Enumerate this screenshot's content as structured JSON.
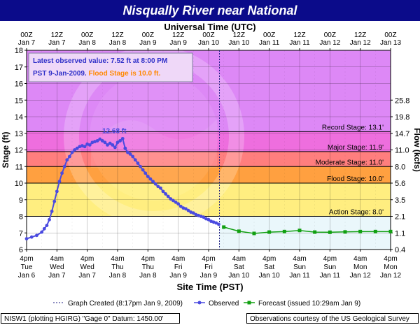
{
  "title": "Nisqually River near National",
  "top_axis_title": "Universal Time (UTC)",
  "bottom_axis_title": "Site Time (PST)",
  "left_axis_title": "Stage (ft)",
  "right_axis_title": "Flow (kcfs)",
  "info_box": {
    "line1": "Latest observed value: 7.52 ft at 8:00 PM",
    "line2a": "PST 9-Jan-2009. ",
    "line2b": "Flood Stage is 10.0 ft."
  },
  "peak_label": "12.68 ft",
  "watermark": "NOAA",
  "legend": {
    "created": "Graph Created (8:17pm Jan 9, 2009)",
    "observed": "Observed",
    "forecast": "Forecast (issued 10:29am Jan 9)"
  },
  "footer_left": "NISW1 (plotting HGIRG)  \"Gage 0\" Datum: 1450.00'",
  "footer_right": "Observations courtesy of the US Geological Survey",
  "colors": {
    "title_bg": "#0b0b8a",
    "record_zone": "#dd88f6",
    "major_zone": "#ee6ede",
    "moderate_zone": "#ff7e7e",
    "flood_zone": "#ffa040",
    "action_zone": "#ffee80",
    "normal_zone": "#ffffff",
    "observed": "#4a4ae0",
    "forecast": "#11a011",
    "info_text": "#2f2fc8",
    "flood_text": "#ff8800"
  },
  "chart_data": {
    "type": "line",
    "x_unit": "hours after 4pm Jan 6 (PST)",
    "ylim": [
      6,
      18
    ],
    "xlim": [
      0,
      120
    ],
    "y_ticks": [
      6,
      7,
      8,
      9,
      10,
      11,
      12,
      13,
      14,
      15,
      16,
      17,
      18
    ],
    "right_ticks": [
      {
        "stage": 6.0,
        "label": "0.4"
      },
      {
        "stage": 7.0,
        "label": "1.1"
      },
      {
        "stage": 8.0,
        "label": "2.1"
      },
      {
        "stage": 9.0,
        "label": "3.5"
      },
      {
        "stage": 10.0,
        "label": "5.6"
      },
      {
        "stage": 11.0,
        "label": "8.0"
      },
      {
        "stage": 12.0,
        "label": "11.0"
      },
      {
        "stage": 13.0,
        "label": "14.7"
      },
      {
        "stage": 14.0,
        "label": "19.8"
      },
      {
        "stage": 15.0,
        "label": "25.8"
      }
    ],
    "bottom_ticks": [
      {
        "h": 0,
        "l1": "4pm",
        "l2": "Tue",
        "l3": "Jan 6"
      },
      {
        "h": 12,
        "l1": "4am",
        "l2": "Wed",
        "l3": "Jan 7"
      },
      {
        "h": 24,
        "l1": "4pm",
        "l2": "Wed",
        "l3": "Jan 7"
      },
      {
        "h": 36,
        "l1": "4am",
        "l2": "Thu",
        "l3": "Jan 8"
      },
      {
        "h": 48,
        "l1": "4pm",
        "l2": "Thu",
        "l3": "Jan 8"
      },
      {
        "h": 60,
        "l1": "4am",
        "l2": "Fri",
        "l3": "Jan 9"
      },
      {
        "h": 72,
        "l1": "4pm",
        "l2": "Fri",
        "l3": "Jan 9"
      },
      {
        "h": 84,
        "l1": "4am",
        "l2": "Sat",
        "l3": "Jan 10"
      },
      {
        "h": 96,
        "l1": "4pm",
        "l2": "Sat",
        "l3": "Jan 10"
      },
      {
        "h": 108,
        "l1": "4am",
        "l2": "Sun",
        "l3": "Jan 11"
      },
      {
        "h": 120,
        "l1": "4pm",
        "l2": "Sun",
        "l3": "Jan 11"
      },
      {
        "h": 132,
        "l1": "4am",
        "l2": "Mon",
        "l3": "Jan 12"
      },
      {
        "h": 144,
        "l1": "4pm",
        "l2": "Mon",
        "l3": "Jan 12"
      }
    ],
    "top_ticks": [
      {
        "h": 0,
        "l1": "00Z",
        "l2": "Jan 7"
      },
      {
        "h": 12,
        "l1": "12Z",
        "l2": "Jan 7"
      },
      {
        "h": 24,
        "l1": "00Z",
        "l2": "Jan 8"
      },
      {
        "h": 36,
        "l1": "12Z",
        "l2": "Jan 8"
      },
      {
        "h": 48,
        "l1": "00Z",
        "l2": "Jan 9"
      },
      {
        "h": 60,
        "l1": "12Z",
        "l2": "Jan 9"
      },
      {
        "h": 72,
        "l1": "00Z",
        "l2": "Jan 10"
      },
      {
        "h": 84,
        "l1": "12Z",
        "l2": "Jan 10"
      },
      {
        "h": 96,
        "l1": "00Z",
        "l2": "Jan 11"
      },
      {
        "h": 108,
        "l1": "12Z",
        "l2": "Jan 11"
      },
      {
        "h": 120,
        "l1": "00Z",
        "l2": "Jan 12"
      },
      {
        "h": 132,
        "l1": "12Z",
        "l2": "Jan 12"
      },
      {
        "h": 144,
        "l1": "00Z",
        "l2": "Jan 13"
      }
    ],
    "thresholds": [
      {
        "name": "Record Stage: 13.1'",
        "stage": 13.1
      },
      {
        "name": "Major Stage: 11.9'",
        "stage": 11.9
      },
      {
        "name": "Moderate Stage: 11.0'",
        "stage": 11.0
      },
      {
        "name": "Flood Stage: 10.0'",
        "stage": 10.0
      },
      {
        "name": "Action Stage: 8.0'",
        "stage": 8.0
      }
    ],
    "graph_created_h": 76.3,
    "peak": {
      "h": 38,
      "stage": 12.68
    },
    "series": [
      {
        "name": "Observed",
        "points": [
          [
            0,
            6.65
          ],
          [
            2,
            6.75
          ],
          [
            4,
            6.85
          ],
          [
            6,
            7.05
          ],
          [
            7,
            7.25
          ],
          [
            8,
            7.45
          ],
          [
            9,
            7.8
          ],
          [
            10,
            8.3
          ],
          [
            11,
            8.9
          ],
          [
            12,
            9.5
          ],
          [
            13,
            10.1
          ],
          [
            14,
            10.6
          ],
          [
            15,
            11.0
          ],
          [
            16,
            11.4
          ],
          [
            17,
            11.6
          ],
          [
            18,
            11.85
          ],
          [
            19,
            12.0
          ],
          [
            20,
            12.1
          ],
          [
            21,
            12.2
          ],
          [
            22,
            12.25
          ],
          [
            23,
            12.2
          ],
          [
            24,
            12.35
          ],
          [
            25,
            12.3
          ],
          [
            26,
            12.45
          ],
          [
            27,
            12.5
          ],
          [
            28,
            12.55
          ],
          [
            29,
            12.65
          ],
          [
            30,
            12.55
          ],
          [
            31,
            12.45
          ],
          [
            32,
            12.3
          ],
          [
            33,
            12.4
          ],
          [
            34,
            12.3
          ],
          [
            35,
            12.15
          ],
          [
            36,
            12.45
          ],
          [
            37,
            12.55
          ],
          [
            38,
            12.68
          ],
          [
            39,
            12.1
          ],
          [
            40,
            11.85
          ],
          [
            41,
            11.75
          ],
          [
            42,
            11.6
          ],
          [
            43,
            11.4
          ],
          [
            44,
            11.2
          ],
          [
            45,
            11.0
          ],
          [
            46,
            10.8
          ],
          [
            47,
            10.6
          ],
          [
            48,
            10.4
          ],
          [
            49,
            10.25
          ],
          [
            50,
            10.1
          ],
          [
            51,
            9.95
          ],
          [
            52,
            9.8
          ],
          [
            53,
            9.7
          ],
          [
            54,
            9.5
          ],
          [
            55,
            9.35
          ],
          [
            56,
            9.2
          ],
          [
            57,
            9.05
          ],
          [
            58,
            8.95
          ],
          [
            59,
            8.85
          ],
          [
            60,
            8.75
          ],
          [
            61,
            8.6
          ],
          [
            62,
            8.5
          ],
          [
            63,
            8.45
          ],
          [
            64,
            8.35
          ],
          [
            65,
            8.25
          ],
          [
            66,
            8.2
          ],
          [
            67,
            8.1
          ],
          [
            68,
            8.05
          ],
          [
            69,
            8.0
          ],
          [
            70,
            7.95
          ],
          [
            71,
            7.85
          ],
          [
            72,
            7.8
          ],
          [
            73,
            7.7
          ],
          [
            74,
            7.65
          ],
          [
            75,
            7.6
          ],
          [
            76,
            7.52
          ]
        ]
      },
      {
        "name": "Forecast (issued 10:29am Jan 9)",
        "points": [
          [
            78,
            7.35
          ],
          [
            84,
            7.1
          ],
          [
            90,
            6.97
          ],
          [
            96,
            7.05
          ],
          [
            102,
            7.08
          ],
          [
            108,
            7.15
          ],
          [
            114,
            7.05
          ],
          [
            120,
            7.04
          ],
          [
            126,
            7.06
          ],
          [
            132,
            7.08
          ],
          [
            138,
            7.08
          ],
          [
            144,
            7.08
          ]
        ]
      }
    ]
  }
}
